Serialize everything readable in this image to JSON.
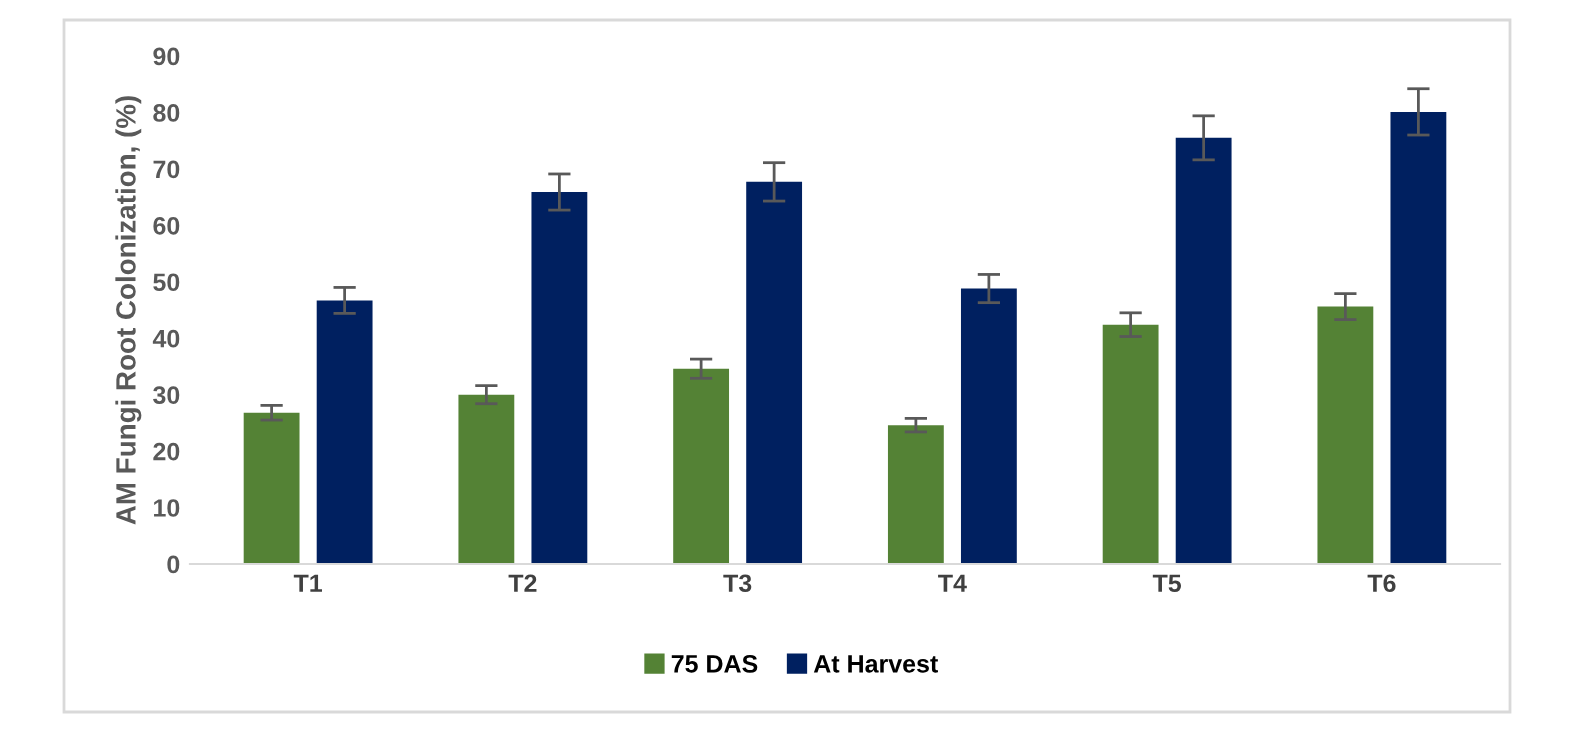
{
  "chart_data": {
    "type": "bar",
    "ylabel": "AM Fungi Root Colonization, (%)",
    "categories": [
      "T1",
      "T2",
      "T3",
      "T4",
      "T5",
      "T6"
    ],
    "series": [
      {
        "name": "75 DAS",
        "color": "#548235",
        "values": [
          26.8,
          30.0,
          34.6,
          24.6,
          42.4,
          45.6
        ],
        "errors": [
          1.3,
          1.6,
          1.7,
          1.2,
          2.1,
          2.3
        ]
      },
      {
        "name": "At Harvest",
        "color": "#002060",
        "values": [
          46.7,
          65.9,
          67.7,
          48.8,
          75.5,
          80.1
        ],
        "errors": [
          2.3,
          3.2,
          3.4,
          2.5,
          3.9,
          4.1
        ]
      }
    ],
    "ylim": [
      0,
      90
    ],
    "yticks": [
      0,
      10,
      20,
      30,
      40,
      50,
      60,
      70,
      80,
      90
    ],
    "grid": false,
    "legend": "bottom"
  }
}
